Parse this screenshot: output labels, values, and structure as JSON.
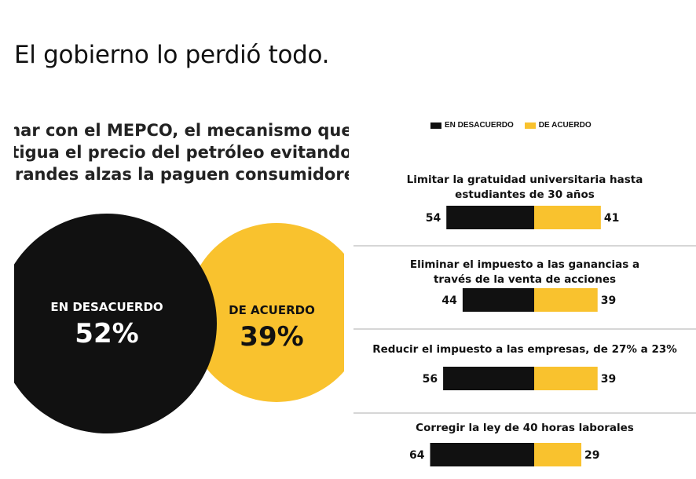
{
  "post": {
    "title": "El gobierno lo perdió todo."
  },
  "headline_lines": [
    "inar con el MEPCO, el mecanismo que",
    "rtigua el precio del petróleo evitando",
    "grandes alzas la paguen consumidores"
  ],
  "colors": {
    "desacuerdo": "#111111",
    "acuerdo": "#F9C22E",
    "divider": "#d6d6d6"
  },
  "legend": {
    "desacuerdo": "EN DESACUERDO",
    "acuerdo": "DE ACUERDO"
  },
  "chart_data": [
    {
      "type": "pie",
      "title": "inar con el MEPCO, el mecanismo que rtigua el precio del petróleo evitando grandes alzas la paguen consumidores",
      "series": [
        {
          "name": "EN DESACUERDO",
          "value": 52,
          "label": "52%"
        },
        {
          "name": "DE ACUERDO",
          "value": 39,
          "label": "39%"
        }
      ]
    },
    {
      "type": "bar",
      "categories": [
        "Limitar la gratuidad universitaria hasta estudiantes de 30 años",
        "Eliminar el impuesto a las ganancias a través de la venta de acciones",
        "Reducir el impuesto a las empresas, de 27% a 23%",
        "Corregir la ley de 40 horas laborales"
      ],
      "category_lines": [
        [
          "Limitar la gratuidad universitaria hasta",
          "estudiantes de 30 años"
        ],
        [
          "Eliminar el impuesto a las ganancias a",
          "través de la venta de acciones"
        ],
        [
          "Reducir el impuesto a las empresas, de 27% a 23%"
        ],
        [
          "Corregir la ley de 40 horas laborales"
        ]
      ],
      "series": [
        {
          "name": "EN DESACUERDO",
          "values": [
            54,
            44,
            56,
            64
          ]
        },
        {
          "name": "DE ACUERDO",
          "values": [
            41,
            39,
            39,
            29
          ]
        }
      ],
      "legend": "top"
    }
  ]
}
